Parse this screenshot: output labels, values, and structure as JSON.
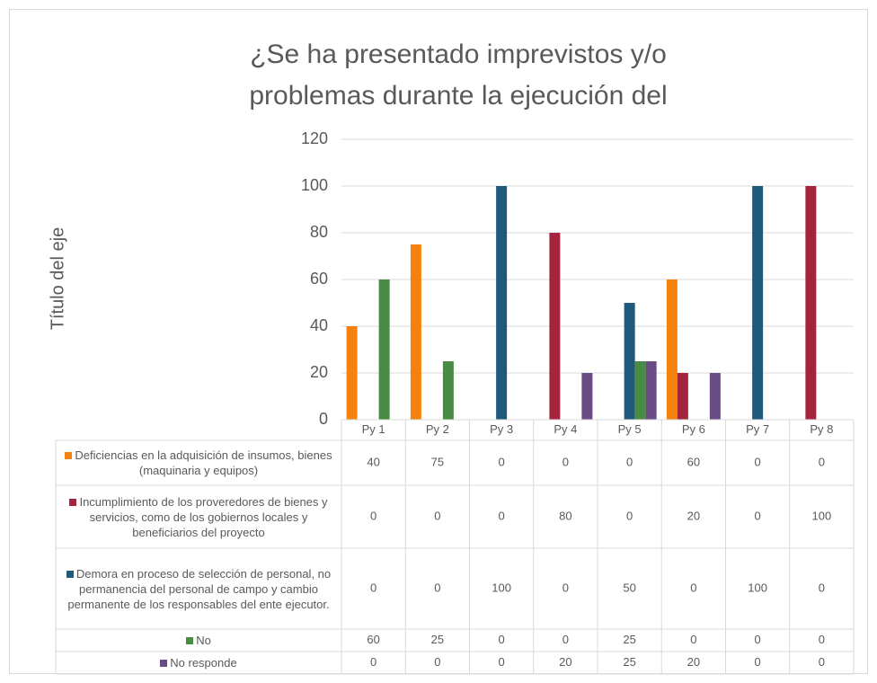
{
  "chart_data": {
    "type": "bar",
    "title": "¿Se ha presentado imprevistos y/o problemas durante la ejecución del proyecto?",
    "y_axis_label": "Título del eje",
    "categories": [
      "Py 1",
      "Py 2",
      "Py 3",
      "Py 4",
      "Py 5",
      "Py 6",
      "Py 7",
      "Py 8"
    ],
    "series": [
      {
        "name": "Deficiencias en la  adquisición de insumos, bienes (maquinaria y equipos)",
        "color": "#f5820f",
        "values": [
          40,
          75,
          0,
          0,
          0,
          60,
          0,
          0
        ]
      },
      {
        "name": "Incumplimiento de los proveredores de bienes y servicios, como de los gobiernos  locales y beneficiarios del proyecto",
        "color": "#a5243d",
        "values": [
          0,
          0,
          0,
          80,
          0,
          20,
          0,
          100
        ]
      },
      {
        "name": "Demora en proceso de selección de personal, no permanencia del personal de campo y cambio permanente de los responsables del ente ejecutor.",
        "color": "#1f5a7a",
        "values": [
          0,
          0,
          100,
          0,
          50,
          0,
          100,
          0
        ]
      },
      {
        "name": "No",
        "color": "#4a8b43",
        "values": [
          60,
          25,
          0,
          0,
          25,
          0,
          0,
          0
        ]
      },
      {
        "name": "No responde",
        "color": "#6a4c85",
        "values": [
          0,
          0,
          0,
          20,
          25,
          20,
          0,
          0
        ]
      }
    ],
    "ylim": [
      0,
      120
    ],
    "yticks": [
      0,
      20,
      40,
      60,
      80,
      100,
      120
    ],
    "grid": true
  }
}
